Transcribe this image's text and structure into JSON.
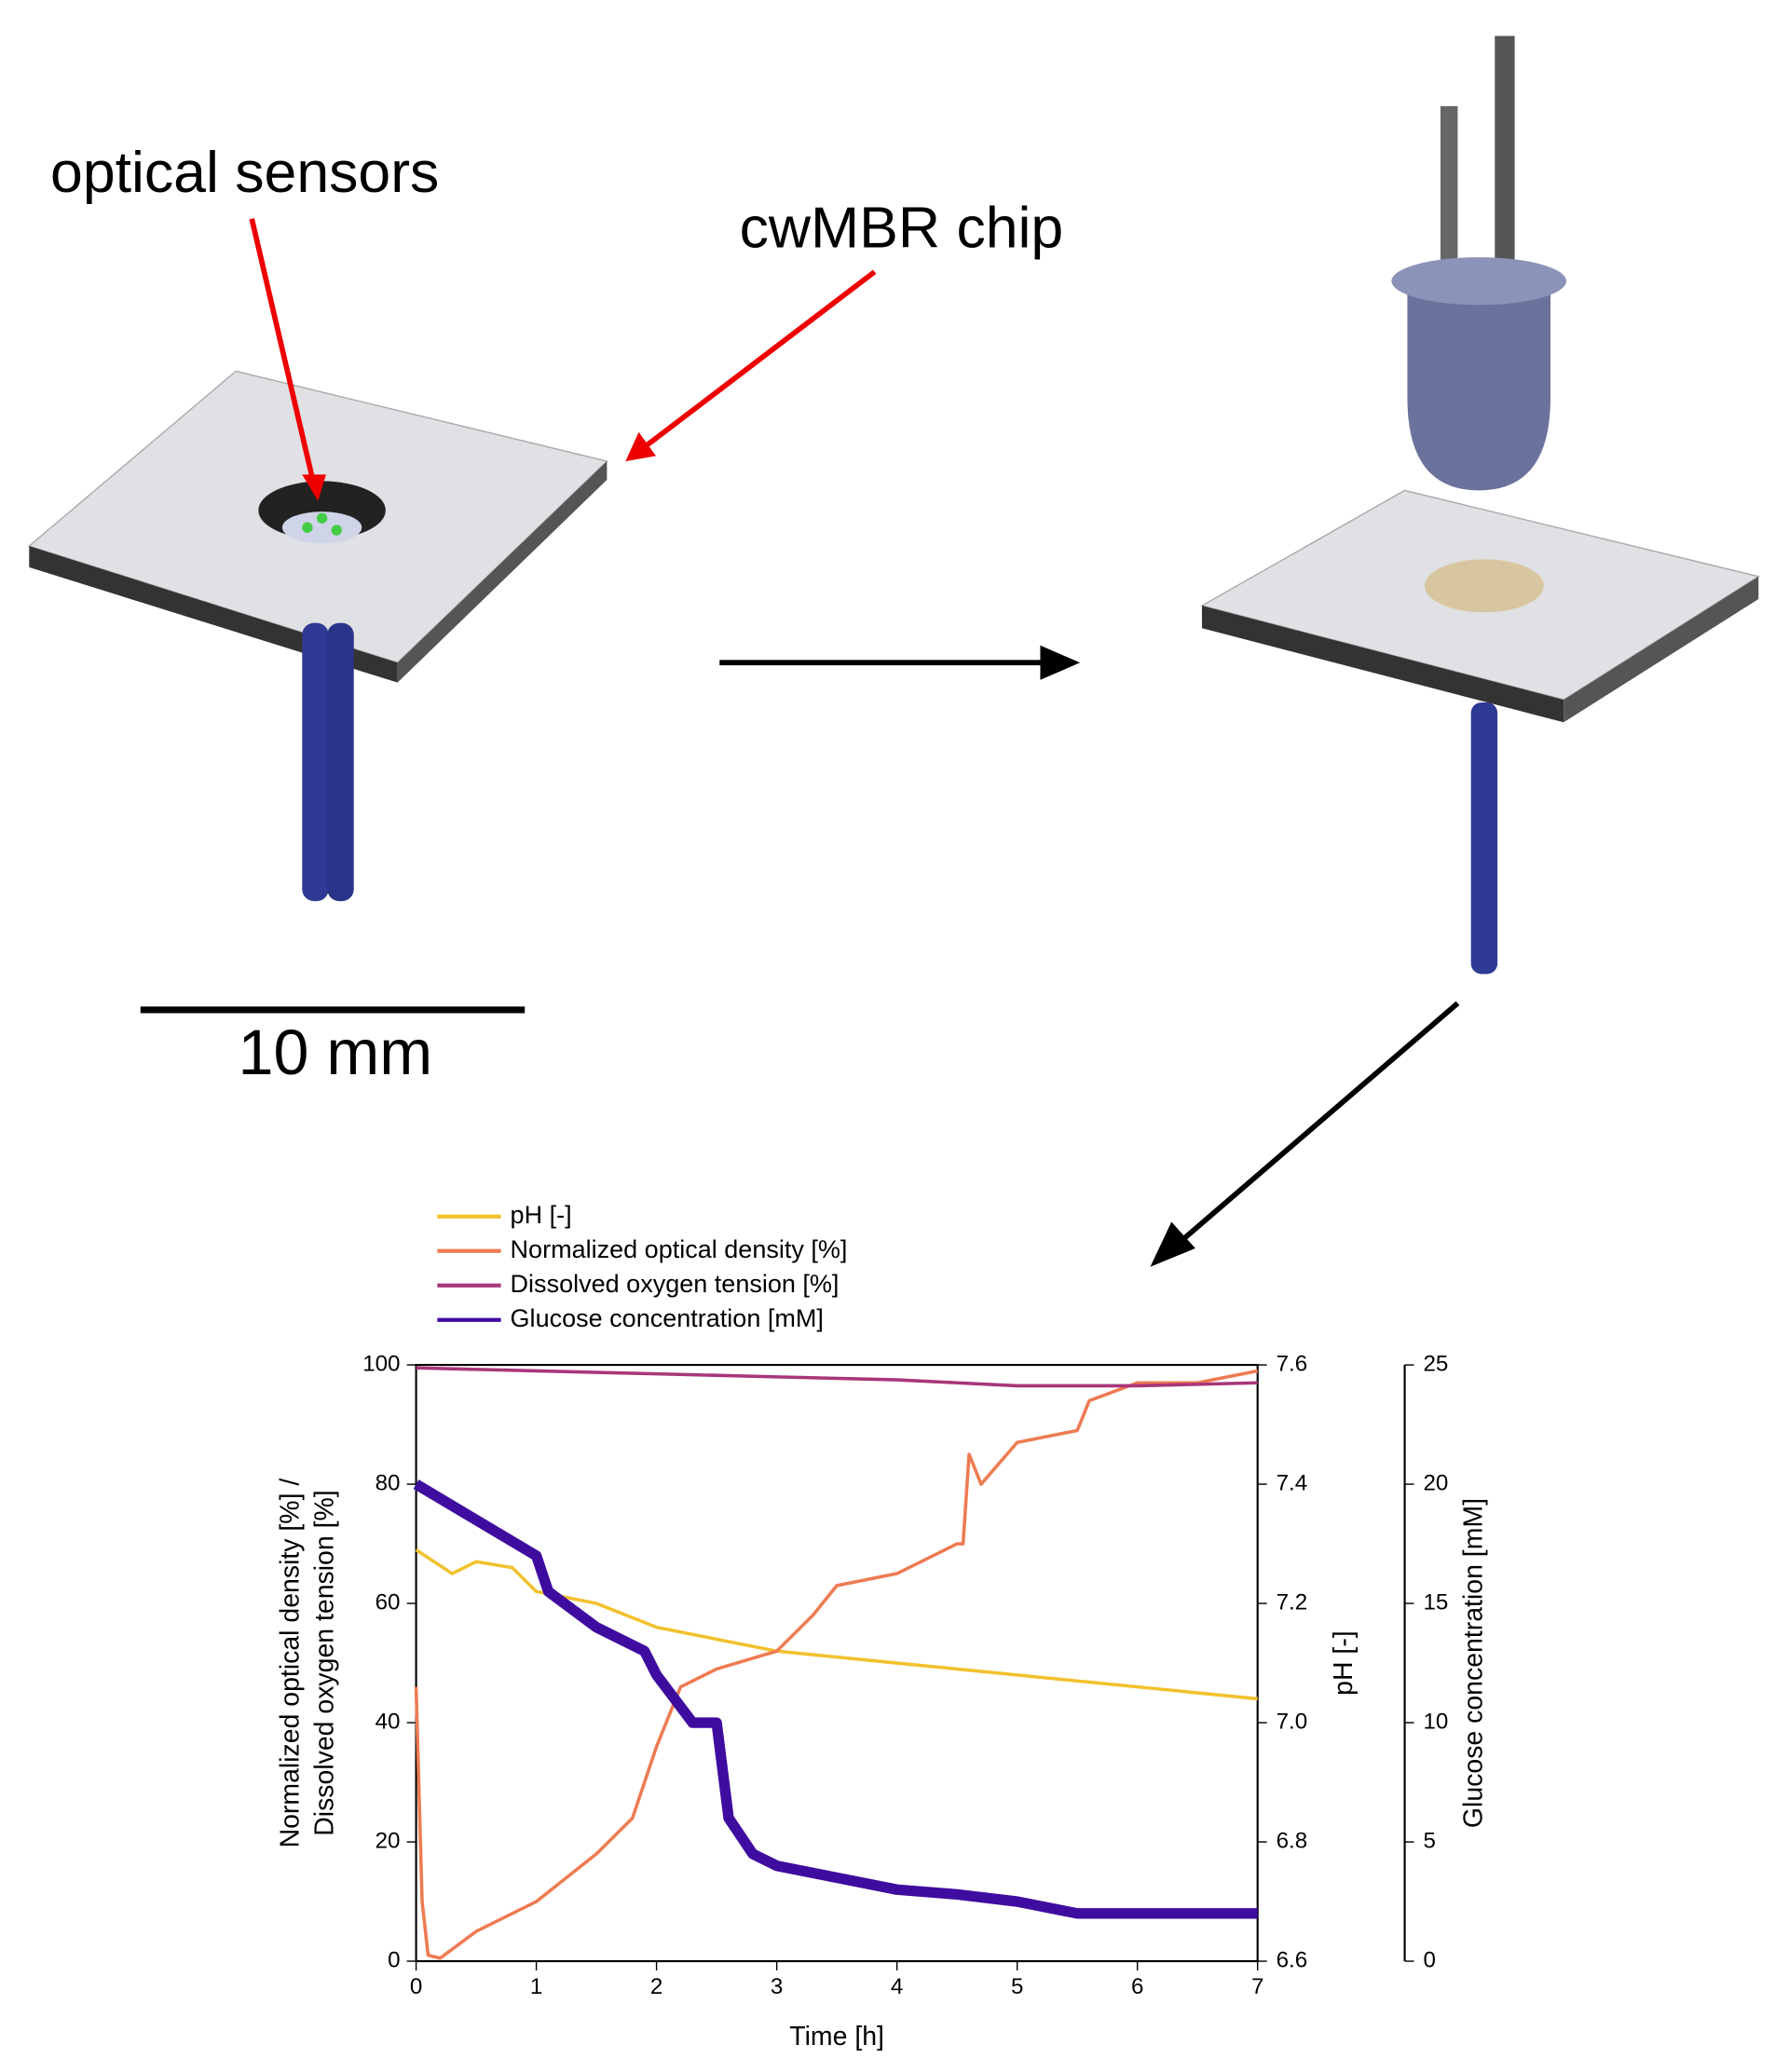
{
  "labels": {
    "sensors": "optical sensors",
    "chip": "cwMBR chip",
    "scale": "10 mm"
  },
  "chart_data": {
    "type": "line",
    "xlabel": "Time [h]",
    "ylabel": [
      "Normalized optical density [%] /",
      "Dissolved oxygen tension [%]"
    ],
    "y2label": "pH [-]",
    "y3label": "Glucose concentration [mM]",
    "xlim": [
      0,
      7
    ],
    "xticks": [
      0,
      1,
      2,
      3,
      4,
      5,
      6,
      7
    ],
    "ylim": [
      0,
      100
    ],
    "yticks": [
      0,
      20,
      40,
      60,
      80,
      100
    ],
    "y2lim": [
      6.6,
      7.6
    ],
    "y2ticks": [
      6.6,
      6.8,
      {
        "value": 7,
        "label": "7.0"
      },
      7.2,
      7.4,
      7.6
    ],
    "y3lim": [
      0,
      25
    ],
    "y3ticks": [
      0,
      5,
      10,
      15,
      20,
      25
    ],
    "series": [
      {
        "name": "pH [-]",
        "color": "#f2c12e",
        "axis": "y2",
        "x": [
          0,
          0.3,
          0.5,
          0.8,
          1,
          1.5,
          2,
          2.5,
          3,
          3.5,
          4,
          4.5,
          5,
          5.5,
          6,
          6.5,
          7
        ],
        "values": [
          7.29,
          7.25,
          7.27,
          7.26,
          7.22,
          7.2,
          7.16,
          7.14,
          7.12,
          7.11,
          7.1,
          7.09,
          7.08,
          7.07,
          7.06,
          7.05,
          7.04
        ]
      },
      {
        "name": "Normalized optical density [%]",
        "color": "#ee7b52",
        "axis": "y",
        "x": [
          0,
          0.05,
          0.1,
          0.2,
          0.5,
          1,
          1.5,
          1.8,
          2,
          2.2,
          2.5,
          3,
          3.3,
          3.5,
          4,
          4.5,
          4.55,
          4.6,
          4.7,
          5,
          5.5,
          5.6,
          6,
          6.5,
          7
        ],
        "values": [
          46,
          10,
          1,
          0.5,
          5,
          10,
          18,
          24,
          36,
          46,
          49,
          52,
          58,
          63,
          65,
          70,
          70,
          85,
          80,
          87,
          89,
          94,
          97,
          97,
          99
        ]
      },
      {
        "name": "Dissolved oxygen tension [%]",
        "color": "#a8367a",
        "axis": "y",
        "x": [
          0,
          1,
          2,
          3,
          4,
          4.5,
          5,
          6,
          7
        ],
        "values": [
          99.5,
          99,
          98.5,
          98,
          97.5,
          97,
          96.5,
          96.5,
          97
        ]
      },
      {
        "name": "Glucose concentration [mM]",
        "color": "#3f0ca0",
        "axis": "y3",
        "x": [
          0,
          0.5,
          1,
          1.1,
          1.5,
          1.9,
          2,
          2.3,
          2.5,
          2.6,
          2.8,
          3,
          3.5,
          4,
          4.5,
          5,
          5.5,
          6,
          6.5,
          7
        ],
        "values": [
          20,
          18.5,
          17,
          15.5,
          14,
          13,
          12,
          10,
          10,
          6,
          4.5,
          4,
          3.5,
          3,
          2.8,
          2.5,
          2,
          2,
          2,
          2
        ]
      }
    ]
  }
}
